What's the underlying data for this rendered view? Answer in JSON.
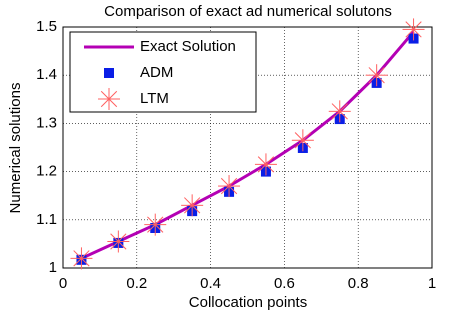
{
  "chart_data": {
    "type": "line",
    "title": "Comparison of exact ad numerical solutons",
    "x_label": "Collocation points",
    "y_label": "Numerical solutions",
    "x": [
      0.05,
      0.15,
      0.25,
      0.35,
      0.45,
      0.55,
      0.65,
      0.75,
      0.85,
      0.95
    ],
    "series": [
      {
        "name": "Exact Solution",
        "color": "#b400b4",
        "marker": "line",
        "values": [
          1.02,
          1.055,
          1.09,
          1.13,
          1.17,
          1.215,
          1.265,
          1.325,
          1.4,
          1.49
        ]
      },
      {
        "name": "ADM",
        "color": "#0a1ee6",
        "marker": "square",
        "values": [
          1.017,
          1.052,
          1.083,
          1.118,
          1.158,
          1.2,
          1.249,
          1.309,
          1.384,
          1.476
        ]
      },
      {
        "name": "LTM",
        "color": "#ff6060",
        "marker": "star",
        "values": [
          1.02,
          1.055,
          1.09,
          1.13,
          1.17,
          1.215,
          1.265,
          1.325,
          1.4,
          1.495
        ]
      }
    ],
    "xlim": [
      0,
      1
    ],
    "xticks": [
      0,
      0.2,
      0.4,
      0.6,
      0.8,
      1
    ],
    "ylim": [
      1,
      1.5
    ],
    "yticks": [
      1,
      1.1,
      1.2,
      1.3,
      1.4,
      1.5
    ],
    "grid": true,
    "legend": "upper left"
  }
}
